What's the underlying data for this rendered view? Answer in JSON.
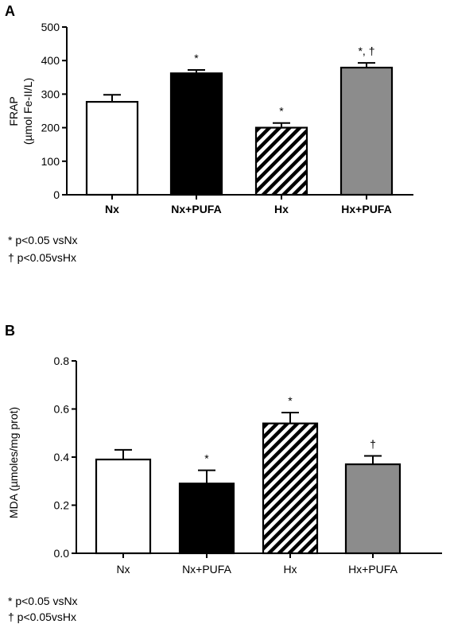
{
  "chart_data": [
    {
      "panel": "A",
      "type": "bar",
      "ylabel": [
        "FRAP",
        "(µmol Fe-II/L)"
      ],
      "ylim": [
        0,
        500
      ],
      "yticks": [
        "0",
        "100",
        "200",
        "300",
        "400",
        "500"
      ],
      "categories": [
        "Nx",
        "Nx+PUFA",
        "Hx",
        "Hx+PUFA"
      ],
      "values": [
        277,
        362,
        200,
        379
      ],
      "errors": [
        21,
        10,
        14,
        14
      ],
      "bar_fills": [
        "white",
        "black",
        "hatch",
        "gray"
      ],
      "significance": [
        "",
        "*",
        "*",
        "*, †"
      ],
      "footnotes": [
        "* p<0.05 vsNx",
        "† p<0.05vsHx"
      ]
    },
    {
      "panel": "B",
      "type": "bar",
      "ylabel": [
        "MDA (µmoles/mg prot)"
      ],
      "ylim": [
        0,
        0.8
      ],
      "yticks": [
        "0.0",
        "0.2",
        "0.4",
        "0.6",
        "0.8"
      ],
      "categories": [
        "Nx",
        "Nx+PUFA",
        "Hx",
        "Hx+PUFA"
      ],
      "values": [
        0.39,
        0.29,
        0.54,
        0.37
      ],
      "errors": [
        0.04,
        0.055,
        0.045,
        0.035
      ],
      "bar_fills": [
        "white",
        "black",
        "hatch",
        "gray"
      ],
      "significance": [
        "",
        "*",
        "*",
        "†"
      ],
      "footnotes": [
        "* p<0.05 vsNx",
        "† p<0.05vsHx"
      ]
    }
  ],
  "colors": {
    "black": "#000000",
    "gray": "#8c8c8c",
    "white": "#ffffff"
  }
}
